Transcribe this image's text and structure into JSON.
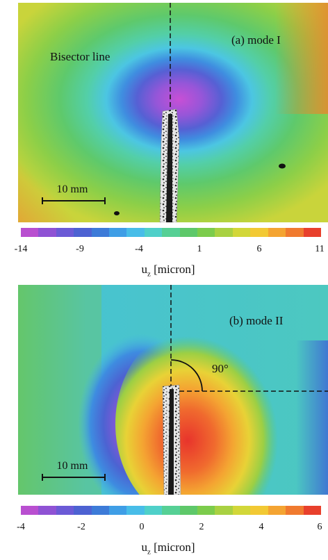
{
  "panel_a": {
    "title": "(a) mode I",
    "line_label": "Bisector line",
    "scale_label": "10 mm",
    "colorbar": {
      "ticks": [
        "-14",
        "-9",
        "-4",
        "1",
        "6",
        "11"
      ],
      "unit_main": "u",
      "unit_sub": "z",
      "unit_rest": " [micron]"
    }
  },
  "panel_b": {
    "title": "(b) mode II",
    "angle_label": "90°",
    "scale_label": "10 mm",
    "colorbar": {
      "ticks": [
        "-4",
        "-2",
        "0",
        "2",
        "4",
        "6"
      ],
      "unit_main": "u",
      "unit_sub": "z",
      "unit_rest": " [micron]"
    }
  },
  "colormap": [
    "#b94fd0",
    "#8f52d4",
    "#6b5ad6",
    "#4d62d2",
    "#3d7bd8",
    "#3f9ee6",
    "#48bde8",
    "#4fd0c9",
    "#56d095",
    "#5ec86a",
    "#7ccc4c",
    "#a9d142",
    "#d2d739",
    "#f2c934",
    "#f4a432",
    "#f07a2f",
    "#e8402c"
  ]
}
